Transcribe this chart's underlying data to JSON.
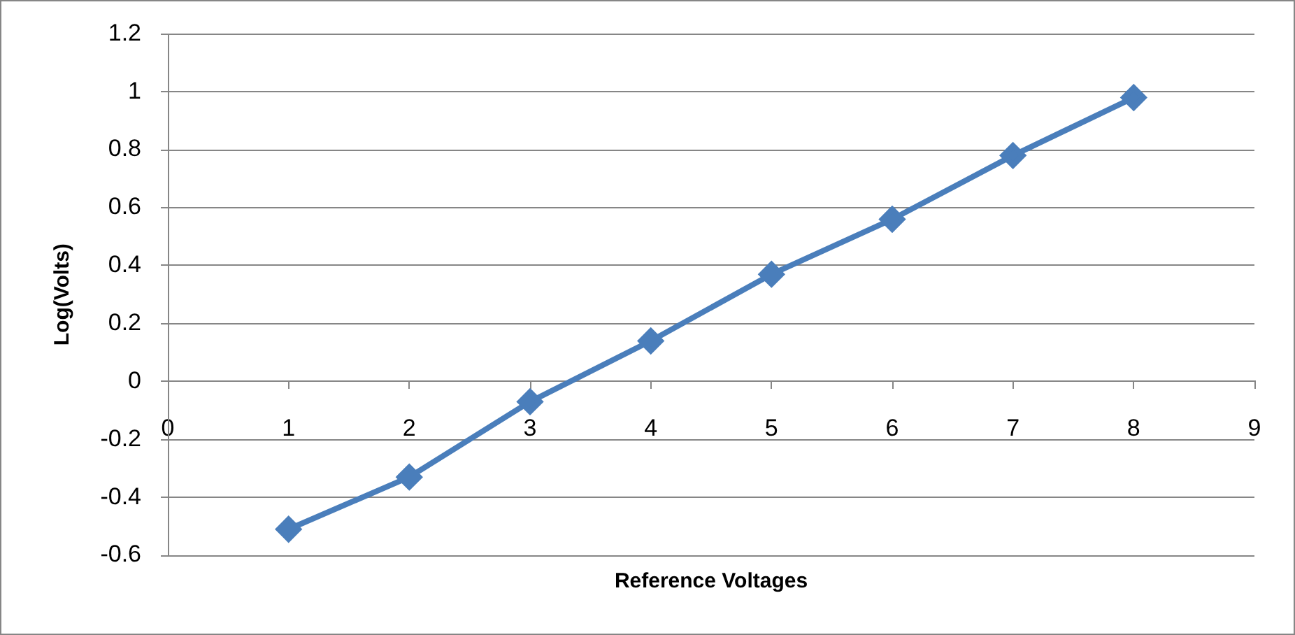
{
  "chart_data": {
    "type": "line",
    "xlabel": "Reference Voltages",
    "ylabel": "Log(Volts)",
    "x": [
      1,
      2,
      3,
      4,
      5,
      6,
      7,
      8
    ],
    "series": [
      {
        "color": "#4a7ebb",
        "values": [
          -0.51,
          -0.33,
          -0.07,
          0.14,
          0.37,
          0.56,
          0.78,
          0.98
        ]
      }
    ],
    "xlim": [
      0,
      9
    ],
    "xticks": [
      0,
      1,
      2,
      3,
      4,
      5,
      6,
      7,
      8,
      9
    ],
    "ylim": [
      -0.6,
      1.2
    ],
    "yticks": [
      -0.6,
      -0.4,
      -0.2,
      0,
      0.2,
      0.4,
      0.6,
      0.8,
      1,
      1.2
    ],
    "grid": "y",
    "marker": "diamond",
    "line_style": "solid"
  }
}
